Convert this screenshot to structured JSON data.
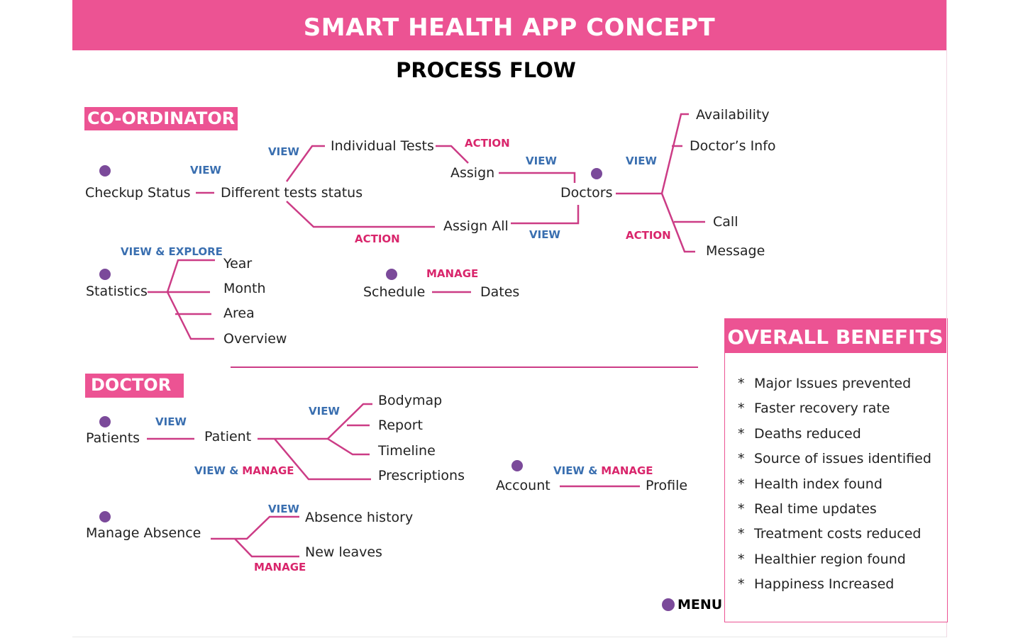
{
  "header": {
    "title": "SMART HEALTH APP CONCEPT",
    "subtitle": "PROCESS FLOW"
  },
  "colors": {
    "accent": "#ec5393",
    "connector": "#cc3c86",
    "view_label": "#3a6fb0",
    "action_label": "#d9266c",
    "dot": "#7b4a9a"
  },
  "sections": {
    "coordinator": "CO-ORDINATOR",
    "doctor": "DOCTOR"
  },
  "coordinator": {
    "checkup_status": "Checkup Status",
    "different_tests_status": "Different tests status",
    "individual_tests": "Individual Tests",
    "assign": "Assign",
    "assign_all": "Assign All",
    "doctors": "Doctors",
    "availability": "Availability",
    "doctors_info": "Doctor’s Info",
    "call": "Call",
    "message": "Message",
    "statistics": "Statistics",
    "year": "Year",
    "month": "Month",
    "area": "Area",
    "overview": "Overview",
    "schedule": "Schedule",
    "dates": "Dates",
    "labels": {
      "view_checkup": "VIEW",
      "view_individual": "VIEW",
      "action_individual": "ACTION",
      "action_assign_all": "ACTION",
      "view_assign": "VIEW",
      "view_assign_all": "VIEW",
      "view_doctors": "VIEW",
      "action_doctors": "ACTION",
      "view_explore": "VIEW & EXPLORE",
      "manage_schedule": "MANAGE"
    }
  },
  "doctor": {
    "patients": "Patients",
    "patient": "Patient",
    "bodymap": "Bodymap",
    "report": "Report",
    "timeline": "Timeline",
    "prescriptions": "Prescriptions",
    "account": "Account",
    "profile": "Profile",
    "manage_absence": "Manage Absence",
    "absence_history": "Absence history",
    "new_leaves": "New leaves",
    "labels": {
      "view_patients": "VIEW",
      "view_patient": "VIEW",
      "view_and": "VIEW &",
      "manage_word": "MANAGE",
      "view_absence": "VIEW",
      "manage_absence": "MANAGE"
    }
  },
  "benefits": {
    "title": "OVERALL BENEFITS",
    "bullet": "*",
    "items": [
      "Major Issues prevented",
      "Faster recovery rate",
      "Deaths  reduced",
      "Source of issues identified",
      "Health index found",
      "Real time updates",
      "Treatment costs reduced",
      "Healthier region found",
      "Happiness Increased"
    ]
  },
  "legend": {
    "menu": "MENU"
  }
}
